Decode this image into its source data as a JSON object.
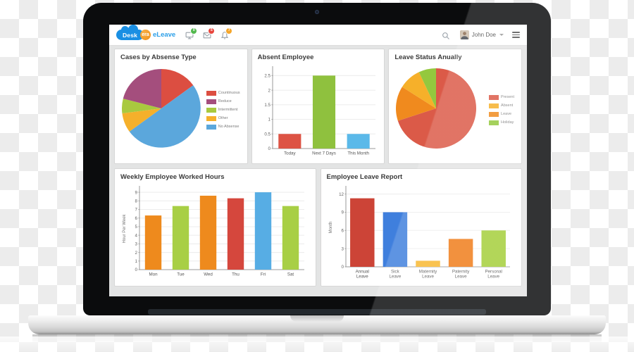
{
  "header": {
    "logo": {
      "brand_primary": "Desk",
      "brand_secondary": "era",
      "product": "eLeave",
      "cloud_color": "#1a8fe3",
      "accent_color": "#ee8c14",
      "product_color": "#2b9fe8"
    },
    "notifications": [
      {
        "icon": "monitor-icon",
        "badge": "0",
        "badge_color": "#52b84d"
      },
      {
        "icon": "mail-icon",
        "badge": "5",
        "badge_color": "#e8453c"
      },
      {
        "icon": "bell-icon",
        "badge": "7",
        "badge_color": "#f5a62a"
      }
    ],
    "user": {
      "name": "John Doe"
    }
  },
  "chart_data": [
    {
      "type": "pie",
      "title": "Cases by Absense Type",
      "slices": [
        {
          "label": "Countinuous",
          "value": 15,
          "color": "#dc4e41"
        },
        {
          "label": "No Absense",
          "value": 50,
          "color": "#5ba7dc"
        },
        {
          "label": "Other",
          "value": 8,
          "color": "#f5b02b"
        },
        {
          "label": "Intermittent",
          "value": 6,
          "color": "#a9c93f"
        },
        {
          "label": "Reduce",
          "value": 21,
          "color": "#a44e7d"
        }
      ],
      "legend": [
        {
          "label": "Countinuous",
          "color": "#dc4e41"
        },
        {
          "label": "Reduce",
          "color": "#a44e7d"
        },
        {
          "label": "Intermittent",
          "color": "#a9c93f"
        },
        {
          "label": "Other",
          "color": "#f5b02b"
        },
        {
          "label": "No Absense",
          "color": "#5ba7dc"
        }
      ],
      "legend_position": "right"
    },
    {
      "type": "bar",
      "title": "Absent Employee",
      "categories": [
        "Today",
        "Next 7 Days",
        "This Month"
      ],
      "values": [
        0.5,
        2.5,
        0.5
      ],
      "colors": [
        "#dd5344",
        "#8fc13e",
        "#5bb9e9"
      ],
      "yticks": [
        0,
        0.5,
        1,
        1.5,
        2,
        2.5
      ],
      "ylim": [
        0,
        2.75
      ],
      "ylabel": "",
      "xlabel": "",
      "grid": true,
      "bar_frac": 0.66
    },
    {
      "type": "pie",
      "title": "Leave Status Anually",
      "slices": [
        {
          "label": "Present",
          "value": 70,
          "color": "#db5a48"
        },
        {
          "label": "Leave",
          "value": 14,
          "color": "#f08a1e"
        },
        {
          "label": "Absent",
          "value": 9,
          "color": "#f6b02a"
        },
        {
          "label": "Holiday",
          "value": 7,
          "color": "#94c83e"
        }
      ],
      "legend": [
        {
          "label": "Present",
          "color": "#db5a48"
        },
        {
          "label": "Absent",
          "color": "#f6b02a"
        },
        {
          "label": "Leave",
          "color": "#f08a1e"
        },
        {
          "label": "Holiday",
          "color": "#94c83e"
        }
      ],
      "legend_position": "right"
    },
    {
      "type": "bar",
      "title": "Weekly Employee Worked Hours",
      "categories": [
        "Mon",
        "Tue",
        "Wed",
        "Thu",
        "Fri",
        "Sat"
      ],
      "values": [
        6.3,
        7.4,
        8.6,
        8.3,
        9,
        7.4
      ],
      "colors": [
        "#ee8a1d",
        "#a8cf45",
        "#ee8a1d",
        "#d5473d",
        "#57ade4",
        "#a8cf45"
      ],
      "yticks": [
        0,
        1,
        2,
        3,
        4,
        5,
        6,
        7,
        8,
        9
      ],
      "ylim": [
        0,
        9.5
      ],
      "ylabel": "Hour Per Week",
      "xlabel": "",
      "grid": true,
      "bar_frac": 0.6
    },
    {
      "type": "bar",
      "title": "Employee Leave Report",
      "categories": [
        [
          "Annual",
          "Leave"
        ],
        [
          "Sick",
          "Leave"
        ],
        [
          "Maternity",
          "Leave"
        ],
        [
          "Paternity",
          "Leave"
        ],
        [
          "Personal",
          "Leave"
        ]
      ],
      "values": [
        11.3,
        9,
        1,
        4.6,
        6
      ],
      "colors": [
        "#cc4437",
        "#3f7fdd",
        "#f8b830",
        "#f07c19",
        "#a4ce39"
      ],
      "yticks": [
        0,
        3,
        6,
        9,
        12
      ],
      "ylim": [
        0,
        13
      ],
      "ylabel": "Month",
      "xlabel": "",
      "grid": true,
      "bar_frac": 0.74
    }
  ]
}
